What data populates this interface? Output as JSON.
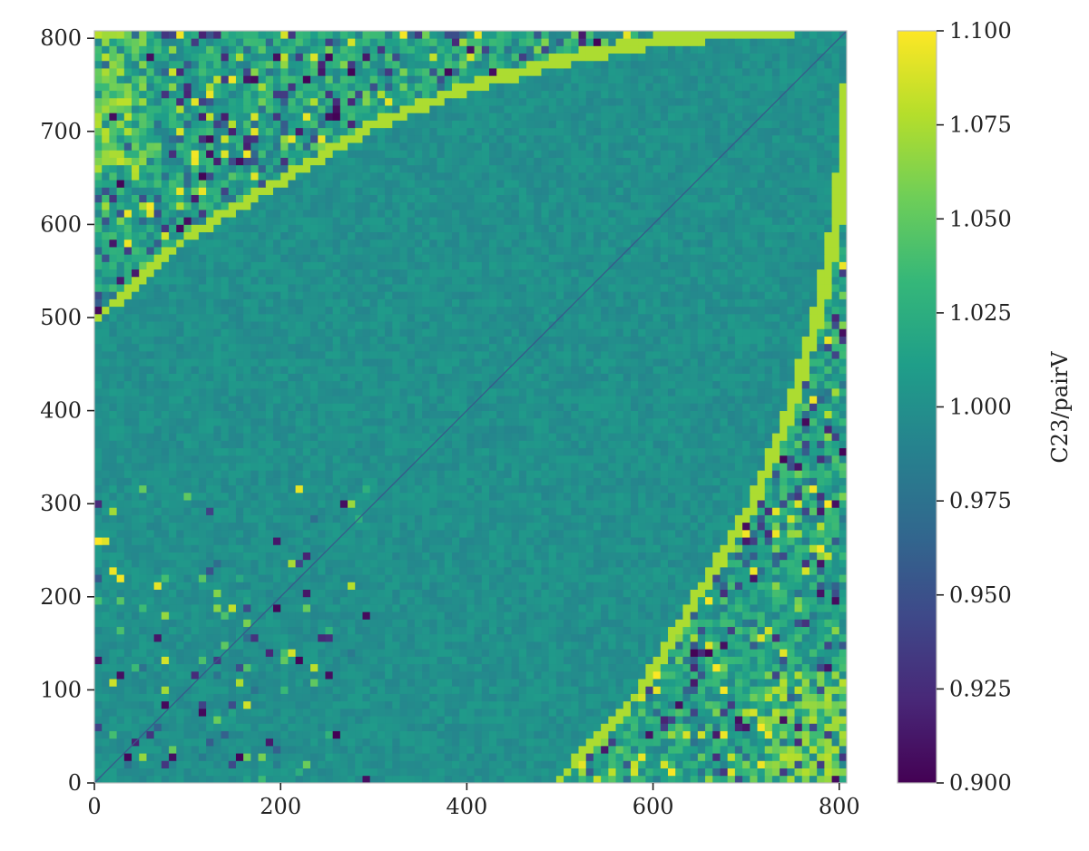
{
  "chart_data": {
    "type": "heatmap",
    "title": "",
    "xlabel": "",
    "ylabel": "",
    "xlim": [
      0,
      808
    ],
    "ylim": [
      0,
      808
    ],
    "x_ticks": [
      0,
      200,
      400,
      600,
      800
    ],
    "x_tick_labels": [
      "0",
      "200",
      "400",
      "600",
      "800"
    ],
    "y_ticks": [
      0,
      100,
      200,
      300,
      400,
      500,
      600,
      700,
      800
    ],
    "y_tick_labels": [
      "0",
      "100",
      "200",
      "300",
      "400",
      "500",
      "600",
      "700",
      "800"
    ],
    "colormap": "viridis",
    "colorbar": {
      "label": "C23/pairV",
      "range": [
        0.9,
        1.1
      ],
      "ticks": [
        0.9,
        0.925,
        0.95,
        0.975,
        1.0,
        1.025,
        1.05,
        1.075,
        1.1
      ],
      "tick_labels": [
        "0.900",
        "0.925",
        "0.950",
        "0.975",
        "1.000",
        "1.025",
        "1.050",
        "1.075",
        "1.100"
      ],
      "position": "right"
    },
    "description_values": {
      "diagonal_value": 0.955,
      "central_region_value": 1.0,
      "boundary_edge_value": 1.075,
      "upper_left_region": {
        "near_origin_value": 1.04,
        "noise_range": [
          0.9,
          1.1
        ]
      },
      "lower_right_region": {
        "near_corner_value": 1.05,
        "noise_range": [
          0.9,
          1.1
        ]
      },
      "boundary_upper_left": [
        [
          0,
          490
        ],
        [
          100,
          580
        ],
        [
          200,
          640
        ],
        [
          300,
          700
        ],
        [
          400,
          740
        ],
        [
          500,
          770
        ],
        [
          600,
          790
        ],
        [
          700,
          800
        ],
        [
          808,
          808
        ]
      ],
      "boundary_lower_right": [
        [
          490,
          0
        ],
        [
          580,
          100
        ],
        [
          640,
          200
        ],
        [
          700,
          300
        ],
        [
          740,
          400
        ],
        [
          770,
          500
        ],
        [
          790,
          600
        ],
        [
          800,
          700
        ],
        [
          808,
          808
        ]
      ]
    },
    "grid": false
  },
  "colors": {
    "viridis_stops": [
      "#440154",
      "#482878",
      "#3e4989",
      "#31688e",
      "#26828e",
      "#1f9e89",
      "#35b779",
      "#6ece58",
      "#b5de2b",
      "#fde725"
    ]
  }
}
